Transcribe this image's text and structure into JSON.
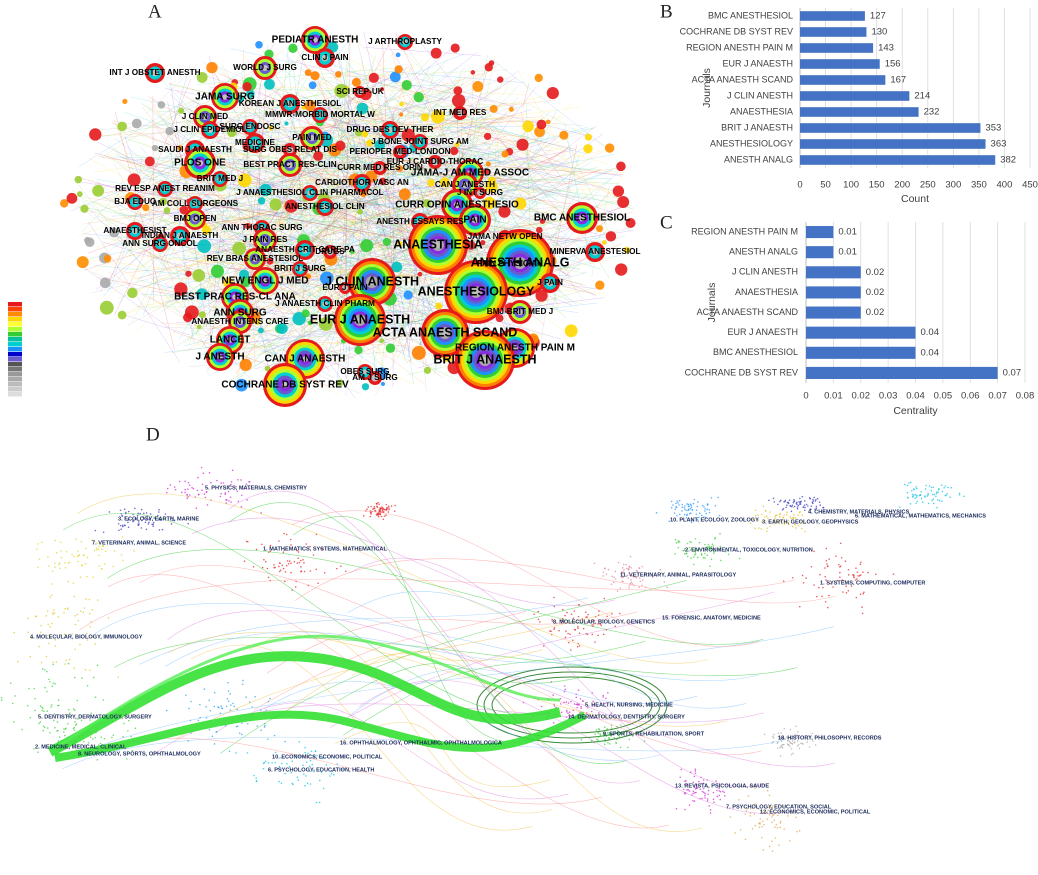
{
  "panel_labels": [
    "A",
    "B",
    "C",
    "D"
  ],
  "network": {
    "nodes": [
      "PEDIATR ANESTH",
      "J ARTHROPLASTY",
      "CLIN J PAIN",
      "INT J OBSTET ANESTH",
      "WORLD J SURG",
      "JAMA SURG",
      "KOREAN J ANESTHESIOL",
      "SCI REP-UK",
      "J CLIN MED",
      "SURG ENDOSC",
      "MMWR-MORBID MORTAL W",
      "INT MED RES",
      "J CLIN EPIDEMIOL",
      "MEDICINE",
      "PAIN MED",
      "DRUG DES DEV THER",
      "J BONE JOINT SURG AM",
      "SAUDI J ANAESTH",
      "SURG OBES RELAT DIS",
      "PERIOPER MED-LONDON",
      "PLOS ONE",
      "BEST PRACT RES-CLIN",
      "CURR MED RES OPIN",
      "EUR J CARDIO-THORAC",
      "BRIT MED J",
      "CARDIOTHOR VASC AN",
      "JAMA-J AM MED ASSOC",
      "REV ESP ANEST REANIM",
      "J ANAESTHESIOL CLIN PHARMACOL",
      "CAN J ANESTH",
      "J INT SURG",
      "BJA EDUC",
      "AM COLL SURGEONS",
      "ANESTHESIOL CLIN",
      "CURR OPIN ANESTHESIO",
      "BMJ OPEN",
      "ANN THORAC SURG",
      "J PAIN RES",
      "ANESTH ESSAYS RES",
      "PAIN",
      "BMC ANESTHESIOL",
      "INDIAN J ANAESTH",
      "ANAESTH CRIT CARE PA",
      "JAMA NETW OPEN",
      "ANAESTHESIST",
      "REV BRAS ANESTESIOL",
      "ANAESTHESIA",
      "PAIN PHYSICIAN",
      "ANN SURG ONCOL",
      "DRUGS",
      "MINERVA ANESTESIOL",
      "NEW ENGL J MED",
      "ANESTH ANALG",
      "BRIT J SURG",
      "J CLIN ANESTH",
      "BEST PRAC RES-CL ANA",
      "ANESTHESIOLOGY",
      "J PAIN",
      "ANN SURG",
      "J ANAESTH CLIN PHARM",
      "EUR J ANAESTH",
      "BMJ-BRIT MED J",
      "ANAESTH INTENS CARE",
      "LANCET",
      "ACTA ANAESTH SCAND",
      "REGION ANESTH PAIN M",
      "J ANESTH",
      "CAN J ANAESTH",
      "BRIT J ANAESTH",
      "OBES SURG",
      "AM J SURG",
      "COCHRANE DB SYST REV",
      "EUR J PAIN"
    ]
  },
  "chart_data": [
    {
      "type": "bar",
      "orientation": "horizontal",
      "categories": [
        "BMC ANESTHESIOL",
        "COCHRANE DB SYST REV",
        "REGION ANESTH PAIN M",
        "EUR J ANAESTH",
        "ACTA ANAESTH SCAND",
        "J CLIN ANESTH",
        "ANAESTHESIA",
        "BRIT J ANAESTH",
        "ANESTHESIOLOGY",
        "ANESTH ANALG"
      ],
      "values": [
        127,
        130,
        143,
        156,
        167,
        214,
        232,
        353,
        363,
        382
      ],
      "color": "#4472c4",
      "xlabel": "Count",
      "ylabel": "Journals",
      "xlim": [
        0,
        450
      ],
      "xticks": [
        0,
        50,
        100,
        150,
        200,
        250,
        300,
        350,
        400,
        450
      ],
      "grid": true
    },
    {
      "type": "bar",
      "orientation": "horizontal",
      "categories": [
        "REGION ANESTH PAIN M",
        "ANESTH ANALG",
        "J CLIN ANESTH",
        "ANAESTHESIA",
        "ACTA ANAESTH SCAND",
        "EUR J ANAESTH",
        "BMC ANESTHESIOL",
        "COCHRANE DB SYST REV"
      ],
      "values": [
        0.01,
        0.01,
        0.02,
        0.02,
        0.02,
        0.04,
        0.04,
        0.07
      ],
      "color": "#4472c4",
      "xlabel": "Centrality",
      "ylabel": "Journals",
      "xlim": [
        0,
        0.08
      ],
      "xticks": [
        0,
        0.01,
        0.02,
        0.03,
        0.04,
        0.05,
        0.06,
        0.07,
        0.08
      ],
      "grid": true
    }
  ],
  "dual_map": {
    "clusters": [
      "5. PHYSICS, MATERIALS, CHEMISTRY",
      "3. ECOLOGY, EARTH, MARINE",
      "7. VETERINARY, ANIMAL, SCIENCE",
      "1. MATHEMATICS, SYSTEMS, MATHEMATICAL",
      "4. MOLECULAR, BIOLOGY, IMMUNOLOGY",
      "5. DENTISTRY, DERMATOLOGY, SURGERY",
      "2. MEDICINE, MEDICAL, CLINICAL",
      "8. NEUROLOGY, SPORTS, OPHTHALMOLOGY",
      "16. OPHTHALMOLOGY, OPHTHALMIC, OPHTHALMOLOGICA",
      "10. ECONOMICS, ECONOMIC, POLITICAL",
      "6. PSYCHOLOGY, EDUCATION, HEALTH",
      "10. PLANT, ECOLOGY, ZOOLOGY",
      "4. CHEMISTRY, MATERIALS, PHYSICS",
      "3. EARTH, GEOLOGY, GEOPHYSICS",
      "6. MATHEMATICAL, MATHEMATICS, MECHANICS",
      "2. ENVIRONMENTAL, TOXICOLOGY, NUTRITION",
      "11. VETERINARY, ANIMAL, PARASITOLOGY",
      "1. SYSTEMS, COMPUTING, COMPUTER",
      "8. MOLECULAR, BIOLOGY, GENETICS",
      "15. FORENSIC, ANATOMY, MEDICINE",
      "5. HEALTH, NURSING, MEDICINE",
      "14. DERMATOLOGY, DENTISTRY, SURGERY",
      "9. SPORTS, REHABILITATION, SPORT",
      "18. HISTORY, PHILOSOPHY, RECORDS",
      "13. REVISTA, PSICOLOGIA, SAUDE",
      "7. PSYCHOLOGY, EDUCATION, SOCIAL",
      "12. ECONOMICS, ECONOMIC, POLITICAL"
    ]
  }
}
